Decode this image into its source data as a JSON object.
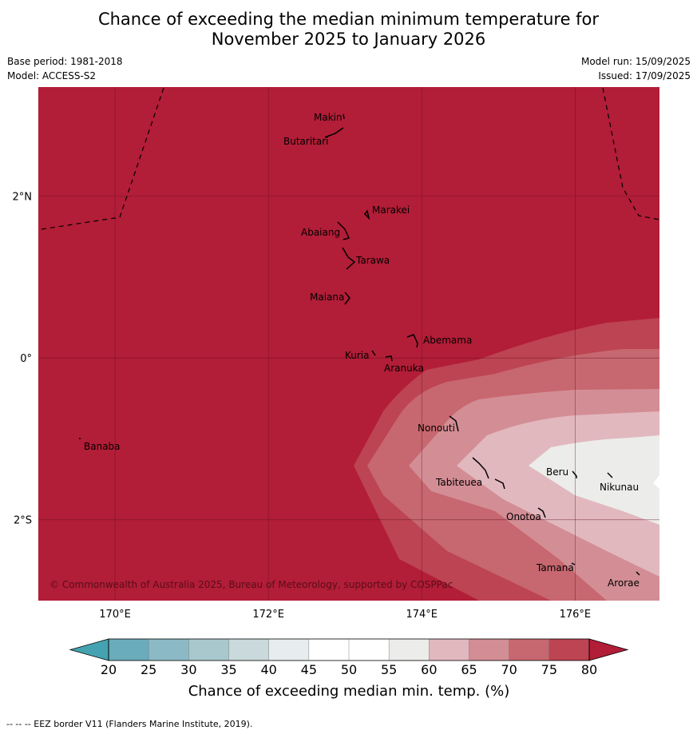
{
  "title_line1": "Chance of exceeding the median minimum temperature for",
  "title_line2": "November 2025 to January 2026",
  "meta": {
    "base_period": "Base period: 1981-2018",
    "model": "Model: ACCESS-S2",
    "model_run": "Model run: 15/09/2025",
    "issued": "Issued: 17/09/2025"
  },
  "map": {
    "lon_range": [
      169.0,
      177.1
    ],
    "lat_range": [
      -3.0,
      3.35
    ],
    "lon_ticks": [
      {
        "value": 170,
        "label": "170°E"
      },
      {
        "value": 172,
        "label": "172°E"
      },
      {
        "value": 174,
        "label": "174°E"
      },
      {
        "value": 176,
        "label": "176°E"
      }
    ],
    "lat_ticks": [
      {
        "value": 2,
        "label": "2°N"
      },
      {
        "value": 0,
        "label": "0°"
      },
      {
        "value": -2,
        "label": "2°S"
      }
    ],
    "gridlines": true,
    "places": [
      {
        "name": "Makin",
        "lon": 173.0,
        "lat": 3.2
      },
      {
        "name": "Butaritari",
        "lon": 172.8,
        "lat": 3.0
      },
      {
        "name": "Marakei",
        "lon": 173.3,
        "lat": 2.0
      },
      {
        "name": "Abaiang",
        "lon": 173.0,
        "lat": 1.8
      },
      {
        "name": "Tarawa",
        "lon": 173.0,
        "lat": 1.4
      },
      {
        "name": "Maiana",
        "lon": 173.0,
        "lat": 0.95
      },
      {
        "name": "Abemama",
        "lon": 173.9,
        "lat": 0.4
      },
      {
        "name": "Kuria",
        "lon": 173.4,
        "lat": 0.22
      },
      {
        "name": "Aranuka",
        "lon": 173.6,
        "lat": 0.15
      },
      {
        "name": "Nonouti",
        "lon": 174.4,
        "lat": -0.65
      },
      {
        "name": "Banaba",
        "lon": 169.5,
        "lat": -0.87
      },
      {
        "name": "Beru",
        "lon": 176.0,
        "lat": -1.35
      },
      {
        "name": "Tabiteuea",
        "lon": 174.8,
        "lat": -1.4
      },
      {
        "name": "Nikunau",
        "lon": 176.45,
        "lat": -1.35
      },
      {
        "name": "Onotoa",
        "lon": 175.55,
        "lat": -1.8
      },
      {
        "name": "Tamana",
        "lon": 175.97,
        "lat": -2.5
      },
      {
        "name": "Arorae",
        "lon": 176.82,
        "lat": -2.65
      }
    ],
    "dominant_category": "80+"
  },
  "copyright": "© Commonwealth of Australia 2025, Bureau of Meteorology, supported by COSPPac",
  "colorbar": {
    "title": "Chance of exceeding median min. temp. (%)",
    "levels": [
      "20",
      "25",
      "30",
      "35",
      "40",
      "45",
      "50",
      "55",
      "60",
      "65",
      "70",
      "75",
      "80"
    ],
    "colors": [
      "#6aacbb",
      "#8bbac6",
      "#a9c8ce",
      "#c9d9dc",
      "#e7edef",
      "#ffffff",
      "#ffffff",
      "#ececea",
      "#e1b8be",
      "#d38d95",
      "#c7676f",
      "#bd4452"
    ],
    "under_color": "#45a3b1",
    "over_color": "#b21d37"
  },
  "footnote": "--  --  -- EEZ border V11 (Flanders Marine Institute, 2019)."
}
